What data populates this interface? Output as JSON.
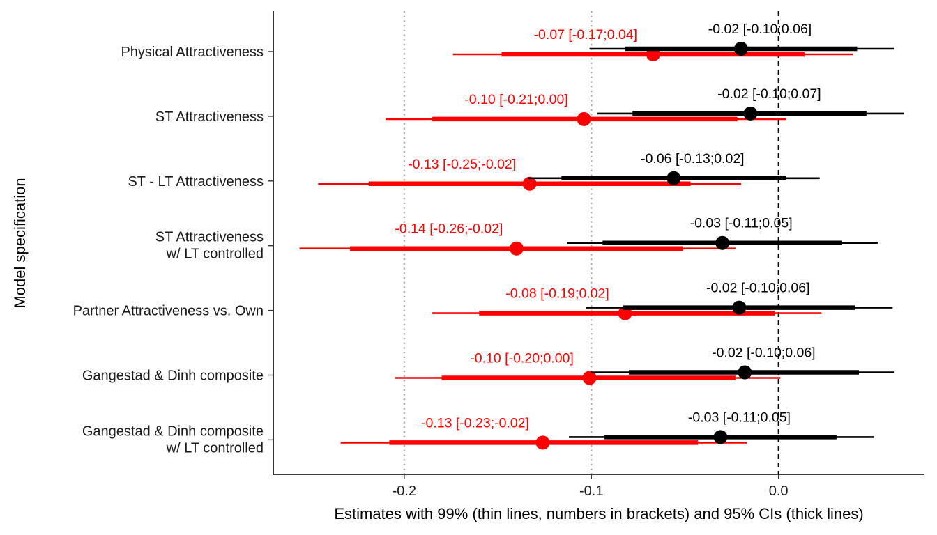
{
  "chart_data": {
    "type": "forest",
    "xlabel": "Estimates with 99% (thin lines, numbers in brackets) and 95% CIs (thick lines)",
    "ylabel": "Model specification",
    "xlim": [
      -0.27,
      0.078
    ],
    "x_ticks": [
      -0.2,
      -0.1,
      0.0
    ],
    "x_tick_labels": [
      "-0.2",
      "-0.1",
      "0.0"
    ],
    "reference_lines": [
      {
        "x": -0.2,
        "style": "dotted",
        "color": "#aaaaaa"
      },
      {
        "x": -0.1,
        "style": "dotted",
        "color": "#aaaaaa"
      },
      {
        "x": 0.0,
        "style": "dashed",
        "color": "#000000"
      }
    ],
    "grid": false,
    "series_colors": {
      "red": "#ff0000",
      "black": "#000000"
    },
    "categories": [
      "Physical Attractiveness",
      "ST Attractiveness",
      "ST - LT Attractiveness",
      "ST Attractiveness\nw/ LT controlled",
      "Partner Attractiveness vs. Own",
      "Gangestad & Dinh composite",
      "Gangestad & Dinh composite\nw/ LT controlled"
    ],
    "series": [
      {
        "color": "#ff0000",
        "points": [
          {
            "est": -0.067,
            "ci95": [
              -0.148,
              0.014
            ],
            "ci99": [
              -0.174,
              0.04
            ],
            "label": "-0.07 [-0.17;0.04]"
          },
          {
            "est": -0.104,
            "ci95": [
              -0.185,
              -0.022
            ],
            "ci99": [
              -0.21,
              0.004
            ],
            "label": "-0.10 [-0.21;0.00]"
          },
          {
            "est": -0.133,
            "ci95": [
              -0.219,
              -0.047
            ],
            "ci99": [
              -0.246,
              -0.02
            ],
            "label": "-0.13 [-0.25;-0.02]"
          },
          {
            "est": -0.14,
            "ci95": [
              -0.229,
              -0.051
            ],
            "ci99": [
              -0.256,
              -0.023
            ],
            "label": "-0.14 [-0.26;-0.02]"
          },
          {
            "est": -0.082,
            "ci95": [
              -0.16,
              -0.002
            ],
            "ci99": [
              -0.185,
              0.023
            ],
            "label": "-0.08 [-0.19;0.02]"
          },
          {
            "est": -0.101,
            "ci95": [
              -0.18,
              -0.023
            ],
            "ci99": [
              -0.205,
              0.001
            ],
            "label": "-0.10 [-0.20;0.00]"
          },
          {
            "est": -0.126,
            "ci95": [
              -0.208,
              -0.043
            ],
            "ci99": [
              -0.234,
              -0.017
            ],
            "label": "-0.13 [-0.23;-0.02]"
          }
        ]
      },
      {
        "color": "#000000",
        "points": [
          {
            "est": -0.02,
            "ci95": [
              -0.082,
              0.042
            ],
            "ci99": [
              -0.101,
              0.062
            ],
            "label": "-0.02 [-0.10;0.06]"
          },
          {
            "est": -0.015,
            "ci95": [
              -0.078,
              0.047
            ],
            "ci99": [
              -0.097,
              0.067
            ],
            "label": "-0.02 [-0.10;0.07]"
          },
          {
            "est": -0.056,
            "ci95": [
              -0.116,
              0.004
            ],
            "ci99": [
              -0.134,
              0.022
            ],
            "label": "-0.06 [-0.13;0.02]"
          },
          {
            "est": -0.03,
            "ci95": [
              -0.094,
              0.034
            ],
            "ci99": [
              -0.113,
              0.053
            ],
            "label": "-0.03 [-0.11;0.05]"
          },
          {
            "est": -0.021,
            "ci95": [
              -0.083,
              0.041
            ],
            "ci99": [
              -0.103,
              0.061
            ],
            "label": "-0.02 [-0.10;0.06]"
          },
          {
            "est": -0.018,
            "ci95": [
              -0.08,
              0.043
            ],
            "ci99": [
              -0.1,
              0.062
            ],
            "label": "-0.02 [-0.10;0.06]"
          },
          {
            "est": -0.031,
            "ci95": [
              -0.093,
              0.031
            ],
            "ci99": [
              -0.112,
              0.051
            ],
            "label": "-0.03 [-0.11;0.05]"
          }
        ]
      }
    ]
  }
}
